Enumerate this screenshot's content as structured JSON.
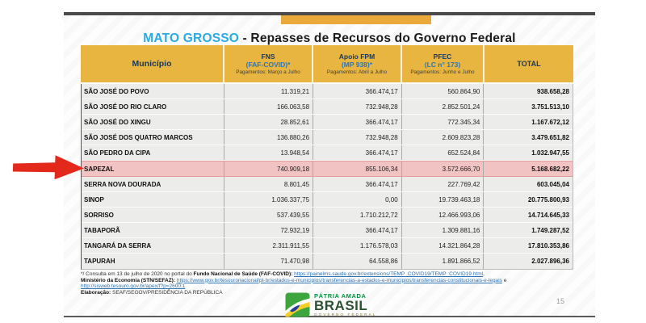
{
  "slide": {
    "title_highlight": "MATO GROSSO",
    "title_rest": " - Repasses de Recursos do Governo Federal",
    "page_number": "15"
  },
  "table": {
    "columns": [
      {
        "label": "Município"
      },
      {
        "line1": "FNS",
        "line2": "(FAF-COVID)*",
        "line3": "Pagamentos: Março a Julho"
      },
      {
        "line1": "Apoio FPM",
        "line2": "(MP 938)*",
        "line3": "Pagamentos: Abril a Julho"
      },
      {
        "line1": "PFEC",
        "line2": "(LC n° 173)",
        "line3": "Pagamentos: Junho e Julho"
      },
      {
        "label": "TOTAL"
      }
    ],
    "rows": [
      {
        "name": "SÃO JOSÉ DO POVO",
        "fns": "11.319,21",
        "fpm": "366.474,17",
        "pfec": "560.864,90",
        "total": "938.658,28",
        "highlight": false
      },
      {
        "name": "SÃO JOSÉ DO RIO CLARO",
        "fns": "166.063,58",
        "fpm": "732.948,28",
        "pfec": "2.852.501,24",
        "total": "3.751.513,10",
        "highlight": false
      },
      {
        "name": "SÃO JOSÉ DO XINGU",
        "fns": "28.852,61",
        "fpm": "366.474,17",
        "pfec": "772.345,34",
        "total": "1.167.672,12",
        "highlight": false
      },
      {
        "name": "SÃO JOSÉ DOS QUATRO MARCOS",
        "fns": "136.880,26",
        "fpm": "732.948,28",
        "pfec": "2.609.823,28",
        "total": "3.479.651,82",
        "highlight": false
      },
      {
        "name": "SÃO PEDRO DA CIPA",
        "fns": "13.948,54",
        "fpm": "366.474,17",
        "pfec": "652.524,84",
        "total": "1.032.947,55",
        "highlight": false
      },
      {
        "name": "SAPEZAL",
        "fns": "740.909,18",
        "fpm": "855.106,34",
        "pfec": "3.572.666,70",
        "total": "5.168.682,22",
        "highlight": true
      },
      {
        "name": "SERRA NOVA DOURADA",
        "fns": "8.801,45",
        "fpm": "366.474,17",
        "pfec": "227.769,42",
        "total": "603.045,04",
        "highlight": false
      },
      {
        "name": "SINOP",
        "fns": "1.036.337,75",
        "fpm": "0,00",
        "pfec": "19.739.463,18",
        "total": "20.775.800,93",
        "highlight": false
      },
      {
        "name": "SORRISO",
        "fns": "537.439,55",
        "fpm": "1.710.212,72",
        "pfec": "12.466.993,06",
        "total": "14.714.645,33",
        "highlight": false
      },
      {
        "name": "TABAPORÃ",
        "fns": "72.932,19",
        "fpm": "366.474,17",
        "pfec": "1.309.881,16",
        "total": "1.749.287,52",
        "highlight": false
      },
      {
        "name": "TANGARÁ DA SERRA",
        "fns": "2.311.911,55",
        "fpm": "1.176.578,03",
        "pfec": "14.321.864,28",
        "total": "17.810.353,86",
        "highlight": false
      },
      {
        "name": "TAPURAH",
        "fns": "71.470,98",
        "fpm": "64.558,86",
        "pfec": "1.891.866,52",
        "total": "2.027.896,36",
        "highlight": false
      }
    ]
  },
  "footnotes": {
    "line1_pre": "*/ Consulta em 13 de julho de 2020 no portal do ",
    "line1_bold": "Fundo Nacional de Saúde (FAF-COVID): ",
    "line1_link": "https://painelms.saude.gov.br/extensions/TEMP_COVID19/TEMP_COVID19.html",
    "line1_post": ",",
    "line2_bold": "Ministério da Economia (STN/SEFAZ): ",
    "line2_link": "https://www.gov.br/tesouronacional/pt-br/estados-e-municipios/transferencias-a-estados-e-municipios/transferencias-constitucionais-e-legais",
    "line2_post": " e",
    "line3_link": "http://sisweb.tesouro.gov.br/apex/f?p=2600:1",
    "line4_bold": "Elaboração: ",
    "line4_text": "SEAF/SEGOV/PRESIDÊNCIA DA REPÚBLICA"
  },
  "logo": {
    "top": "PÁTRIA AMADA",
    "main": "BRASIL",
    "sub": "GOVERNO FEDERAL"
  },
  "colors": {
    "header_yellow": "#E8B640",
    "header_navy": "#17365D",
    "header_blue": "#2E75B5",
    "title_cyan": "#29ABE2",
    "highlight_row_pink": "#F2C3C3",
    "arrow_red": "#E3281C",
    "orange_tab": "#E9A93B",
    "link_blue": "#2E75B5"
  }
}
